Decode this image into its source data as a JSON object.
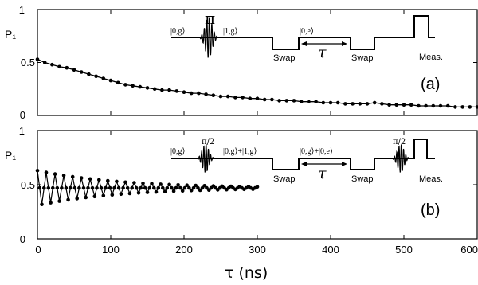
{
  "chart_data": [
    {
      "type": "line",
      "panel_label": "(a)",
      "ylabel": "P₁",
      "xlim": [
        0,
        600
      ],
      "ylim": [
        0,
        1
      ],
      "yticks": [
        "0",
        "0.5",
        "1"
      ],
      "series": [
        {
          "x": [
            0,
            10,
            20,
            30,
            40,
            50,
            60,
            70,
            80,
            90,
            100,
            110,
            120,
            130,
            140,
            150,
            160,
            170,
            180,
            190,
            200,
            210,
            220,
            230,
            240,
            250,
            260,
            270,
            280,
            290,
            300,
            310,
            320,
            330,
            340,
            350,
            360,
            370,
            380,
            390,
            400,
            410,
            420,
            430,
            440,
            450,
            460,
            470,
            480,
            490,
            500,
            510,
            520,
            530,
            540,
            550,
            560,
            570,
            580,
            590,
            600
          ],
          "y": [
            0.53,
            0.5,
            0.48,
            0.46,
            0.45,
            0.43,
            0.41,
            0.39,
            0.37,
            0.35,
            0.33,
            0.31,
            0.29,
            0.28,
            0.27,
            0.26,
            0.25,
            0.24,
            0.24,
            0.23,
            0.22,
            0.21,
            0.21,
            0.2,
            0.19,
            0.18,
            0.18,
            0.17,
            0.17,
            0.16,
            0.16,
            0.15,
            0.15,
            0.14,
            0.14,
            0.14,
            0.13,
            0.13,
            0.13,
            0.12,
            0.12,
            0.12,
            0.11,
            0.11,
            0.11,
            0.11,
            0.12,
            0.11,
            0.1,
            0.1,
            0.1,
            0.1,
            0.09,
            0.09,
            0.09,
            0.09,
            0.09,
            0.08,
            0.08,
            0.08,
            0.08
          ]
        }
      ],
      "sequence": {
        "states": [
          "|0,g⟩",
          "|1,g⟩",
          "|0,e⟩"
        ],
        "pulse_label": "π",
        "swap_labels": [
          "Swap",
          "Swap"
        ],
        "wait_label": "τ",
        "measure_label": "Meas."
      }
    },
    {
      "type": "line",
      "panel_label": "(b)",
      "ylabel": "P₁",
      "xlabel": "τ (ns)",
      "xlim": [
        0,
        600
      ],
      "ylim": [
        0,
        1
      ],
      "yticks": [
        "0",
        "0.5",
        "1"
      ],
      "xticks": [
        "0",
        "100",
        "200",
        "300",
        "400",
        "500",
        "600"
      ],
      "series": [
        {
          "x_start": 0,
          "x_end": 300,
          "x_step": 3,
          "mean": 0.47,
          "initial_amplitude": 0.16,
          "decay_time_ns": 110,
          "oscillation_period_ns": 12
        }
      ],
      "sequence": {
        "states": [
          "|0,g⟩",
          "|0,g⟩+|1,g⟩",
          "|0,g⟩+|0,e⟩"
        ],
        "pulse_label": "π/2",
        "swap_labels": [
          "Swap",
          "Swap"
        ],
        "wait_label": "τ",
        "measure_label": "Meas."
      }
    }
  ]
}
